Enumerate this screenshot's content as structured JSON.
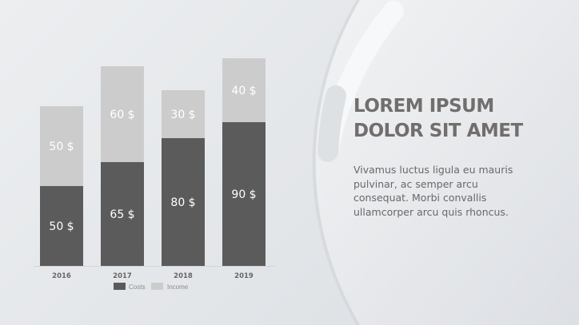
{
  "slide": {
    "title_lines": [
      "LOREM IPSUM",
      "DOLOR SIT AMET"
    ],
    "body": "Vivamus luctus ligula eu mauris pulvinar, ac semper arcu consequat. Morbi convallis ullamcorper arcu quis rhoncus."
  },
  "chart_data": {
    "type": "bar",
    "stacked": true,
    "categories": [
      "2016",
      "2017",
      "2018",
      "2019"
    ],
    "series": [
      {
        "name": "Costs",
        "values": [
          50,
          65,
          80,
          90
        ],
        "color": "#5b5b5b",
        "labels": [
          "50 $",
          "65 $",
          "80 $",
          "90 $"
        ]
      },
      {
        "name": "Income",
        "values": [
          50,
          60,
          30,
          40
        ],
        "color": "#cccccc",
        "labels": [
          "50 $",
          "60 $",
          "30 $",
          "40 $"
        ]
      }
    ],
    "ylim": [
      0,
      130
    ],
    "grid": false,
    "legend": "bottom"
  }
}
